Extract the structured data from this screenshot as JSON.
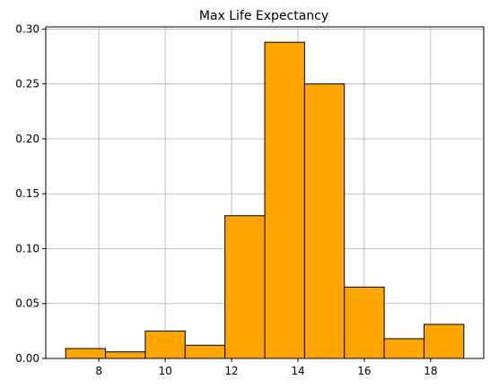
{
  "chart_data": {
    "type": "bar",
    "title": "Max Life Expectancy",
    "xlabel": "",
    "ylabel": "",
    "xlim": [
      6.4,
      19.6
    ],
    "ylim": [
      0.0,
      0.302
    ],
    "x_ticks": [
      8,
      10,
      12,
      14,
      16,
      18
    ],
    "y_ticks": [
      0.0,
      0.05,
      0.1,
      0.15,
      0.2,
      0.25,
      0.3
    ],
    "y_tick_labels": [
      "0.00",
      "0.05",
      "0.10",
      "0.15",
      "0.20",
      "0.25",
      "0.30"
    ],
    "bin_edges": [
      7.0,
      8.2,
      9.4,
      10.6,
      11.8,
      13.0,
      14.2,
      15.4,
      16.6,
      17.8,
      19.0
    ],
    "values": [
      0.009,
      0.006,
      0.025,
      0.012,
      0.13,
      0.288,
      0.25,
      0.065,
      0.018,
      0.031
    ],
    "grid": true,
    "colors": {
      "bar_fill": "#FFA500",
      "bar_edge": "#000000",
      "grid": "#b0b0b0"
    }
  }
}
